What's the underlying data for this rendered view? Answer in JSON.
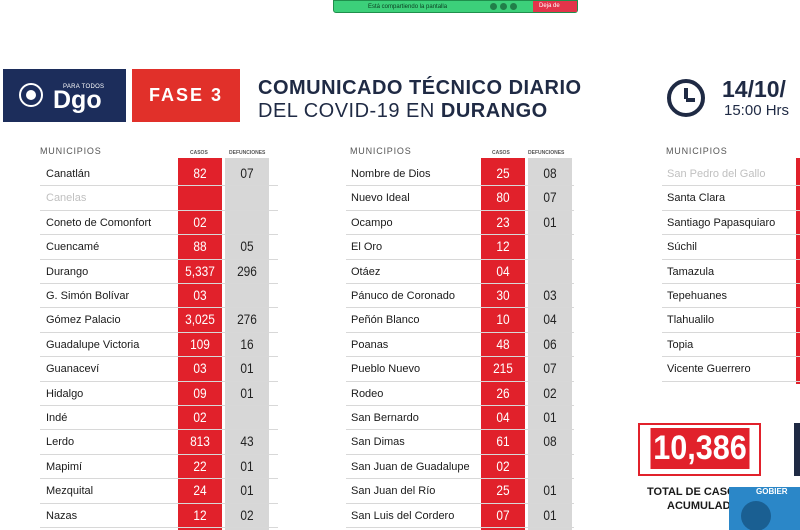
{
  "share_bar": {
    "message": "Está compartiendo la pantalla",
    "stop_label": "Deja de"
  },
  "header": {
    "logo_small": "PARA TODOS",
    "logo_text": "Dgo",
    "phase": "FASE 3",
    "title_line1": "COMUNICADO TÉCNICO DIARIO",
    "title_line2_prefix": "DEL COVID-19 EN ",
    "title_line2_bold": "DURANGO",
    "date": "14/10/",
    "time": "15:00 Hrs"
  },
  "columns": {
    "municipios": "MUNICIPIOS",
    "casos": "CASOS",
    "defunciones": "DEFUNCIONES"
  },
  "table1": [
    {
      "name": "Canatlán",
      "casos": "82",
      "def": "07"
    },
    {
      "name": "Canelas",
      "casos": "",
      "def": "",
      "dim": true
    },
    {
      "name": "Coneto de Comonfort",
      "casos": "02",
      "def": ""
    },
    {
      "name": "Cuencamé",
      "casos": "88",
      "def": "05"
    },
    {
      "name": "Durango",
      "casos": "5,337",
      "def": "296"
    },
    {
      "name": "G. Simón Bolívar",
      "casos": "03",
      "def": ""
    },
    {
      "name": "Gómez Palacio",
      "casos": "3,025",
      "def": "276"
    },
    {
      "name": "Guadalupe Victoria",
      "casos": "109",
      "def": "16"
    },
    {
      "name": "Guanaceví",
      "casos": "03",
      "def": "01"
    },
    {
      "name": "Hidalgo",
      "casos": "09",
      "def": "01"
    },
    {
      "name": "Indé",
      "casos": "02",
      "def": ""
    },
    {
      "name": "Lerdo",
      "casos": "813",
      "def": "43"
    },
    {
      "name": "Mapimí",
      "casos": "22",
      "def": "01"
    },
    {
      "name": "Mezquital",
      "casos": "24",
      "def": "01"
    },
    {
      "name": "Nazas",
      "casos": "12",
      "def": "02"
    }
  ],
  "table2": [
    {
      "name": "Nombre de Dios",
      "casos": "25",
      "def": "08"
    },
    {
      "name": "Nuevo Ideal",
      "casos": "80",
      "def": "07"
    },
    {
      "name": "Ocampo",
      "casos": "23",
      "def": "01"
    },
    {
      "name": "El Oro",
      "casos": "12",
      "def": ""
    },
    {
      "name": "Otáez",
      "casos": "04",
      "def": ""
    },
    {
      "name": "Pánuco de Coronado",
      "casos": "30",
      "def": "03"
    },
    {
      "name": "Peñón Blanco",
      "casos": "10",
      "def": "04"
    },
    {
      "name": "Poanas",
      "casos": "48",
      "def": "06"
    },
    {
      "name": "Pueblo Nuevo",
      "casos": "215",
      "def": "07"
    },
    {
      "name": "Rodeo",
      "casos": "26",
      "def": "02"
    },
    {
      "name": "San Bernardo",
      "casos": "04",
      "def": "01"
    },
    {
      "name": "San Dimas",
      "casos": "61",
      "def": "08"
    },
    {
      "name": "San Juan de Guadalupe",
      "casos": "02",
      "def": ""
    },
    {
      "name": "San Juan del Río",
      "casos": "25",
      "def": "01"
    },
    {
      "name": "San Luis del Cordero",
      "casos": "07",
      "def": "01"
    }
  ],
  "table3": [
    {
      "name": "San Pedro del Gallo",
      "dim": true
    },
    {
      "name": "Santa Clara"
    },
    {
      "name": "Santiago Papasquiaro"
    },
    {
      "name": "Súchil"
    },
    {
      "name": "Tamazula"
    },
    {
      "name": "Tepehuanes"
    },
    {
      "name": "Tlahualilo"
    },
    {
      "name": "Topia"
    },
    {
      "name": "Vicente Guerrero"
    }
  ],
  "total": {
    "value": "10,386",
    "label_line1": "TOTAL DE CASOS",
    "label_line2": "ACUMULADOS"
  },
  "thumbnail": {
    "text": "GOBIER"
  },
  "colors": {
    "red": "#e1212b",
    "navy": "#1c2d5b",
    "gray": "#d7d7d7"
  }
}
